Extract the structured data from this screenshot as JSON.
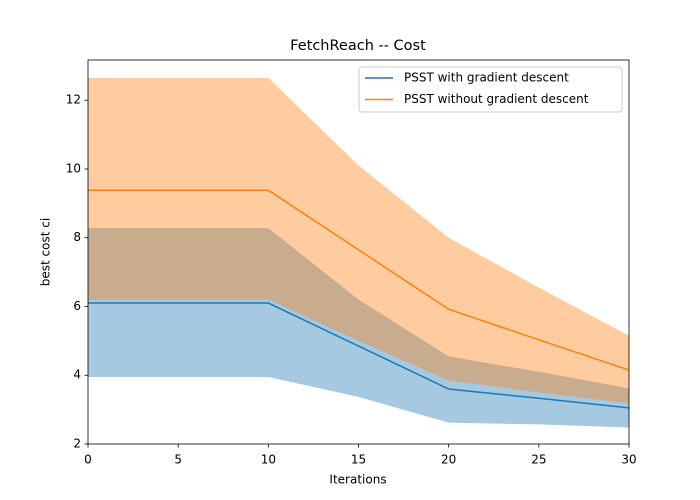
{
  "chart_data": {
    "type": "line",
    "title": "FetchReach -- Cost",
    "x_label": "Iterations",
    "y_label": "best cost ci",
    "x": [
      0,
      10,
      15,
      20,
      25,
      30
    ],
    "xlim": [
      0,
      30
    ],
    "xticks": [
      0,
      5,
      10,
      15,
      20,
      25,
      30
    ],
    "ylim": [
      2,
      13.17
    ],
    "yticks": [
      2,
      4,
      6,
      8,
      10,
      12
    ],
    "legend": "upper right",
    "band_opacity": 0.4,
    "series": [
      {
        "name": "PSST with gradient descent",
        "color": "#1f77b4",
        "values": [
          6.1,
          6.1,
          4.85,
          3.6,
          3.33,
          3.05
        ],
        "lower": [
          3.95,
          3.95,
          3.37,
          2.62,
          2.57,
          2.48
        ],
        "upper": [
          8.28,
          8.28,
          6.2,
          4.55,
          4.1,
          3.62
        ]
      },
      {
        "name": "PSST without gradient descent",
        "color": "#ff7f0e",
        "values": [
          9.38,
          9.38,
          7.65,
          5.92,
          5.03,
          4.15
        ],
        "lower": [
          6.2,
          6.2,
          5.0,
          3.85,
          3.5,
          3.18
        ],
        "upper": [
          12.65,
          12.65,
          10.1,
          8.0,
          6.55,
          5.15
        ]
      }
    ]
  }
}
